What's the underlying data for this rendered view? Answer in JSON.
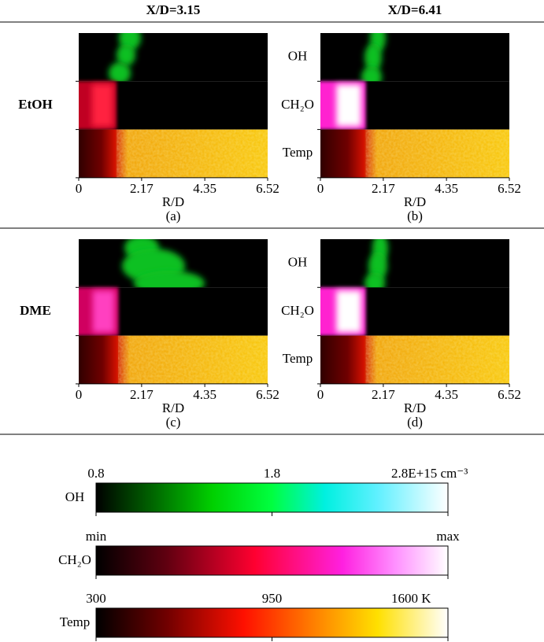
{
  "columns": [
    "X/D=3.15",
    "X/D=6.41"
  ],
  "rows": [
    {
      "label": "EtOH",
      "panels": [
        "(a)",
        "(b)"
      ]
    },
    {
      "label": "DME",
      "panels": [
        "(c)",
        "(d)"
      ]
    }
  ],
  "fields": [
    "OH",
    "CH₂O",
    "Temp"
  ],
  "axis": {
    "label": "R/D",
    "ticks": [
      0,
      2.17,
      4.35,
      6.52
    ]
  },
  "colorbars": [
    {
      "name": "OH",
      "labels": [
        0.8,
        1.8,
        "2.8E+15 cm⁻³"
      ]
    },
    {
      "name": "CH₂O",
      "labels": [
        "min",
        "max"
      ]
    },
    {
      "name": "Temp",
      "labels": [
        300,
        950,
        "1600 K"
      ]
    }
  ]
}
